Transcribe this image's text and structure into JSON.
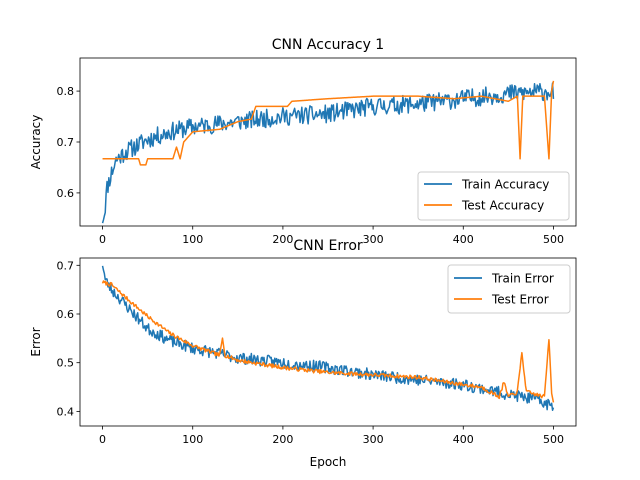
{
  "figure": {
    "background": "#ffffff"
  },
  "chart_data": [
    {
      "type": "line",
      "title": "CNN Accuracy 1",
      "xlabel": "",
      "ylabel": "Accuracy",
      "xlim": [
        -25,
        525
      ],
      "ylim": [
        0.535,
        0.865
      ],
      "xticks": [
        0,
        100,
        200,
        300,
        400,
        500
      ],
      "xtick_labels": [
        "0",
        "100",
        "200",
        "300",
        "400",
        "500"
      ],
      "yticks": [
        0.6,
        0.7,
        0.8
      ],
      "ytick_labels": [
        "0.6",
        "0.7",
        "0.8"
      ],
      "grid": false,
      "legend_position": "lower-right",
      "series": [
        {
          "name": "Train Accuracy",
          "color": "#1f77b4",
          "noise": 0.018,
          "seed": 11,
          "keypoints": [
            [
              0,
              0.55
            ],
            [
              2,
              0.56
            ],
            [
              5,
              0.61
            ],
            [
              10,
              0.64
            ],
            [
              15,
              0.665
            ],
            [
              25,
              0.68
            ],
            [
              50,
              0.705
            ],
            [
              75,
              0.72
            ],
            [
              100,
              0.73
            ],
            [
              150,
              0.74
            ],
            [
              200,
              0.75
            ],
            [
              250,
              0.755
            ],
            [
              300,
              0.77
            ],
            [
              350,
              0.775
            ],
            [
              400,
              0.785
            ],
            [
              450,
              0.795
            ],
            [
              500,
              0.8
            ]
          ]
        },
        {
          "name": "Test Accuracy",
          "color": "#ff7f0e",
          "noise": 0.0,
          "seed": 5,
          "keypoints": [
            [
              0,
              0.667
            ],
            [
              40,
              0.667
            ],
            [
              42,
              0.655
            ],
            [
              48,
              0.655
            ],
            [
              50,
              0.667
            ],
            [
              78,
              0.667
            ],
            [
              82,
              0.69
            ],
            [
              86,
              0.667
            ],
            [
              90,
              0.7
            ],
            [
              95,
              0.71
            ],
            [
              100,
              0.72
            ],
            [
              130,
              0.725
            ],
            [
              150,
              0.74
            ],
            [
              165,
              0.745
            ],
            [
              170,
              0.77
            ],
            [
              205,
              0.77
            ],
            [
              210,
              0.78
            ],
            [
              250,
              0.785
            ],
            [
              300,
              0.79
            ],
            [
              350,
              0.79
            ],
            [
              390,
              0.785
            ],
            [
              420,
              0.79
            ],
            [
              450,
              0.78
            ],
            [
              460,
              0.79
            ],
            [
              463,
              0.667
            ],
            [
              466,
              0.79
            ],
            [
              490,
              0.79
            ],
            [
              495,
              0.667
            ],
            [
              498,
              0.8
            ],
            [
              500,
              0.82
            ]
          ]
        }
      ]
    },
    {
      "type": "line",
      "title": "CNN Error",
      "xlabel": "Epoch",
      "ylabel": "Error",
      "xlim": [
        -25,
        525
      ],
      "ylim": [
        0.37,
        0.715
      ],
      "xticks": [
        0,
        100,
        200,
        300,
        400,
        500
      ],
      "xtick_labels": [
        "0",
        "100",
        "200",
        "300",
        "400",
        "500"
      ],
      "yticks": [
        0.4,
        0.5,
        0.6,
        0.7
      ],
      "ytick_labels": [
        "0.4",
        "0.5",
        "0.6",
        "0.7"
      ],
      "grid": false,
      "legend_position": "upper-right",
      "series": [
        {
          "name": "Train Error",
          "color": "#1f77b4",
          "noise": 0.012,
          "seed": 23,
          "keypoints": [
            [
              0,
              0.705
            ],
            [
              3,
              0.67
            ],
            [
              10,
              0.65
            ],
            [
              25,
              0.62
            ],
            [
              50,
              0.57
            ],
            [
              75,
              0.545
            ],
            [
              100,
              0.53
            ],
            [
              150,
              0.51
            ],
            [
              200,
              0.5
            ],
            [
              250,
              0.49
            ],
            [
              300,
              0.475
            ],
            [
              350,
              0.465
            ],
            [
              400,
              0.455
            ],
            [
              450,
              0.435
            ],
            [
              480,
              0.425
            ],
            [
              500,
              0.41
            ]
          ]
        },
        {
          "name": "Test Error",
          "color": "#ff7f0e",
          "noise": 0.004,
          "seed": 7,
          "keypoints": [
            [
              0,
              0.665
            ],
            [
              10,
              0.66
            ],
            [
              25,
              0.635
            ],
            [
              50,
              0.595
            ],
            [
              75,
              0.56
            ],
            [
              100,
              0.535
            ],
            [
              130,
              0.515
            ],
            [
              133,
              0.55
            ],
            [
              136,
              0.515
            ],
            [
              150,
              0.505
            ],
            [
              200,
              0.49
            ],
            [
              250,
              0.48
            ],
            [
              300,
              0.475
            ],
            [
              350,
              0.47
            ],
            [
              400,
              0.455
            ],
            [
              420,
              0.45
            ],
            [
              430,
              0.44
            ],
            [
              440,
              0.43
            ],
            [
              445,
              0.46
            ],
            [
              450,
              0.43
            ],
            [
              460,
              0.44
            ],
            [
              465,
              0.52
            ],
            [
              470,
              0.44
            ],
            [
              490,
              0.43
            ],
            [
              495,
              0.55
            ],
            [
              498,
              0.44
            ],
            [
              500,
              0.42
            ]
          ]
        }
      ]
    }
  ]
}
